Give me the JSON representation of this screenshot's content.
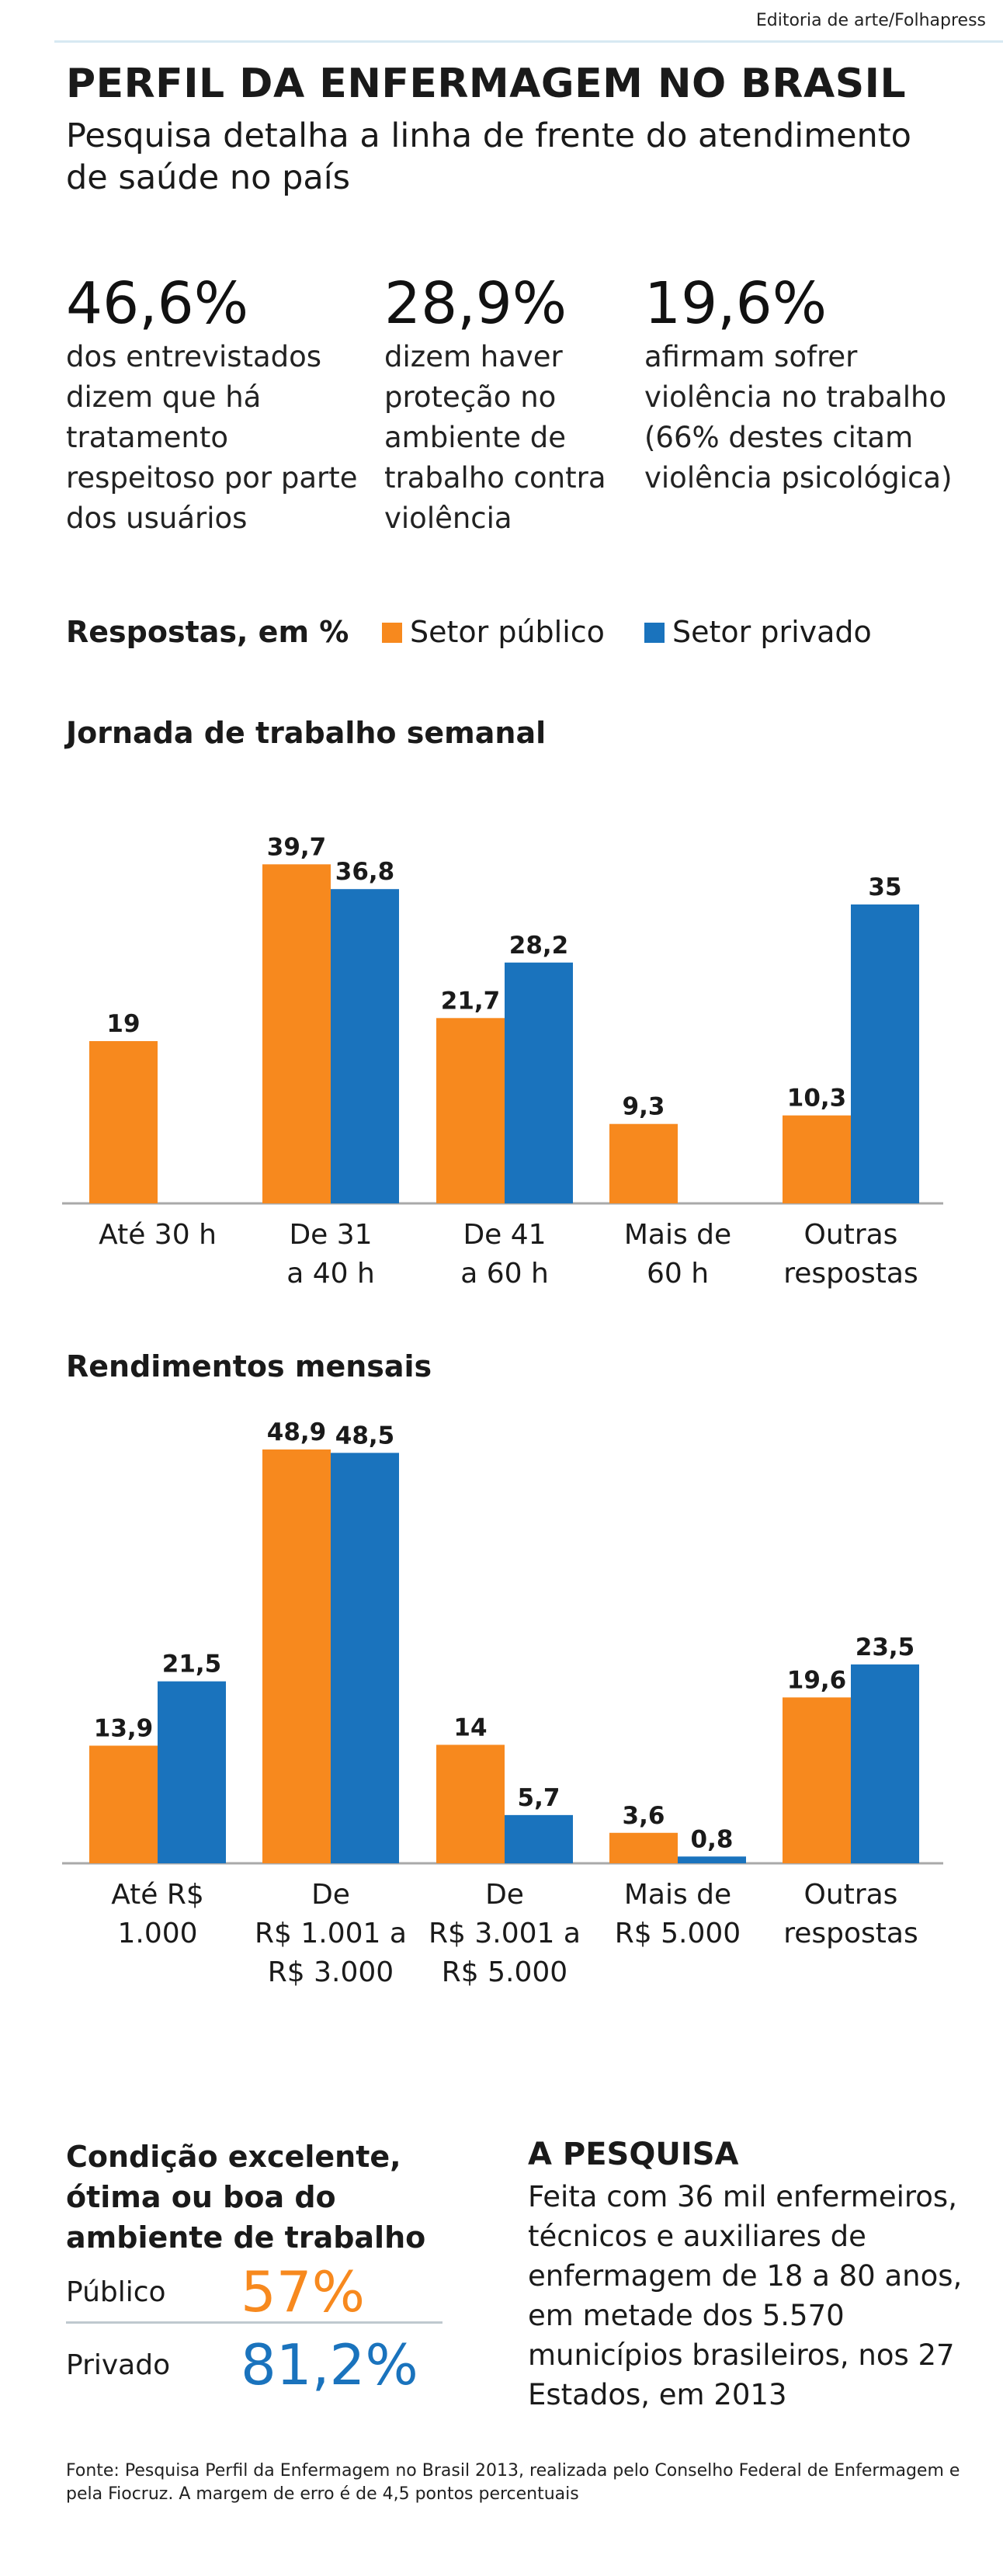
{
  "credit": "Editoria de arte/Folhapress",
  "title": "PERFIL DA ENFERMAGEM NO BRASIL",
  "subtitle": "Pesquisa detalha a linha de frente do atendimento de saúde no país",
  "stats": [
    {
      "value": "46,6%",
      "text": "dos entrevistados dizem que há tratamento respeitoso por parte dos usuários"
    },
    {
      "value": "28,9%",
      "text": "dizem haver proteção no ambiente de trabalho contra violência"
    },
    {
      "value": "19,6%",
      "text": "afirmam sofrer violência no trabalho (66% destes citam violência psicológica)"
    }
  ],
  "legend": {
    "label": "Respostas, em %",
    "publico": "Setor público",
    "privado": "Setor privado"
  },
  "colors": {
    "publico": "#f7891e",
    "privado": "#1a73bd",
    "axis": "#a9a9a9"
  },
  "chart_data": [
    {
      "type": "bar",
      "title": "Jornada de trabalho semanal",
      "categories": [
        [
          "Até 30 h"
        ],
        [
          "De 31",
          "a 40 h"
        ],
        [
          "De 41",
          "a 60 h"
        ],
        [
          "Mais de",
          "60 h"
        ],
        [
          "Outras",
          "respostas"
        ]
      ],
      "series": [
        {
          "name": "Setor público",
          "values": [
            19,
            39.7,
            21.7,
            9.3,
            10.3
          ],
          "labels": [
            "19",
            "39,7",
            "21,7",
            "9,3",
            "10,3"
          ]
        },
        {
          "name": "Setor privado",
          "values": [
            null,
            36.8,
            28.2,
            null,
            35
          ],
          "labels": [
            "",
            "36,8",
            "28,2",
            "",
            "35"
          ]
        }
      ],
      "ylim": [
        0,
        40
      ]
    },
    {
      "type": "bar",
      "title": "Rendimentos mensais",
      "categories": [
        [
          "Até R$",
          "1.000"
        ],
        [
          "De",
          "R$ 1.001 a",
          "R$ 3.000"
        ],
        [
          "De",
          "R$ 3.001 a",
          "R$ 5.000"
        ],
        [
          "Mais de",
          "R$ 5.000"
        ],
        [
          "Outras",
          "respostas"
        ]
      ],
      "series": [
        {
          "name": "Setor público",
          "values": [
            13.9,
            48.9,
            14,
            3.6,
            19.6
          ],
          "labels": [
            "13,9",
            "48,9",
            "14",
            "3,6",
            "19,6"
          ]
        },
        {
          "name": "Setor privado",
          "values": [
            21.5,
            48.5,
            5.7,
            0.8,
            23.5
          ],
          "labels": [
            "21,5",
            "48,5",
            "5,7",
            "0,8",
            "23,5"
          ]
        }
      ],
      "ylim": [
        0,
        50
      ]
    }
  ],
  "condicao": {
    "title_lines": [
      "Condição excelente,",
      "ótima ou boa do",
      "ambiente de trabalho"
    ],
    "publico_label": "Público",
    "publico_value": "57%",
    "privado_label": "Privado",
    "privado_value": "81,2%"
  },
  "pesquisa": {
    "title": "A PESQUISA",
    "text": "Feita com 36 mil enfermeiros, técnicos e auxiliares de enfermagem de 18 a 80 anos, em metade dos 5.570 municípios brasileiros, nos 27 Estados, em 2013"
  },
  "fonte": "Fonte: Pesquisa Perfil da Enfermagem no Brasil 2013, realizada pelo Conselho Federal de Enfermagem e pela Fiocruz. A margem de erro é de 4,5 pontos percentuais"
}
